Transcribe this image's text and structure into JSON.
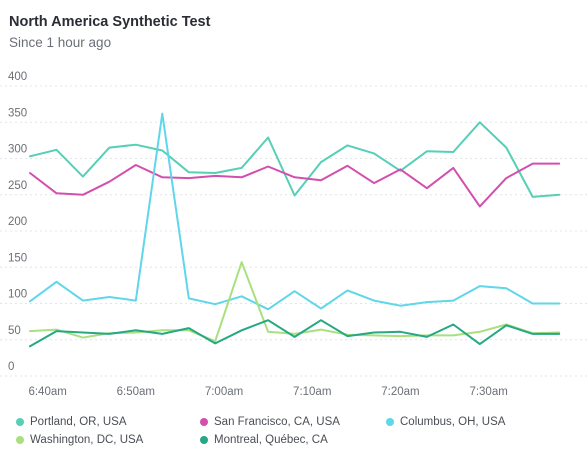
{
  "header": {
    "title": "North America Synthetic Test",
    "subtitle": "Since 1 hour ago"
  },
  "chart_data": {
    "type": "line",
    "title": "North America Synthetic Test",
    "subtitle": "Since 1 hour ago",
    "ylim": [
      0,
      400
    ],
    "yticks": [
      0,
      50,
      100,
      150,
      200,
      250,
      300,
      350,
      400
    ],
    "ytick_labels": [
      "0",
      "50",
      "100",
      "150",
      "200",
      "250",
      "300",
      "350",
      "400"
    ],
    "xticks": [
      "6:40am",
      "6:50am",
      "7:00am",
      "7:10am",
      "7:20am",
      "7:30am"
    ],
    "x_range": [
      "6:38am",
      "7:39am"
    ],
    "x": [
      "6:38am",
      "6:41am",
      "6:44am",
      "6:47am",
      "6:50am",
      "6:53am",
      "6:56am",
      "6:59am",
      "7:02am",
      "7:05am",
      "7:08am",
      "7:11am",
      "7:14am",
      "7:17am",
      "7:20am",
      "7:23am",
      "7:26am",
      "7:29am",
      "7:32am",
      "7:35am",
      "7:38am"
    ],
    "grid": true,
    "legend_position": "bottom",
    "series": [
      {
        "name": "Portland, OR, USA",
        "color": "#55cfb6",
        "values": [
          303,
          312,
          275,
          315,
          319,
          311,
          281,
          280,
          287,
          329,
          249,
          295,
          318,
          307,
          283,
          310,
          309,
          350,
          315,
          247,
          250
        ]
      },
      {
        "name": "San Francisco, CA, USA",
        "color": "#d24fad",
        "values": [
          280,
          252,
          250,
          268,
          291,
          274,
          273,
          276,
          274,
          289,
          274,
          270,
          290,
          266,
          285,
          259,
          287,
          234,
          273,
          293,
          293
        ]
      },
      {
        "name": "Columbus, OH, USA",
        "color": "#5fd6e9",
        "values": [
          103,
          130,
          104,
          109,
          104,
          362,
          107,
          99,
          110,
          92,
          117,
          93,
          118,
          104,
          97,
          102,
          104,
          124,
          121,
          100,
          100
        ]
      },
      {
        "name": "Washington, DC, USA",
        "color": "#a8e07f",
        "values": [
          62,
          64,
          53,
          59,
          60,
          63,
          63,
          48,
          157,
          61,
          58,
          64,
          57,
          56,
          55,
          56,
          56,
          61,
          71,
          59,
          60
        ]
      },
      {
        "name": "Montreal, Québec, CA",
        "color": "#25a883",
        "values": [
          41,
          62,
          60,
          58,
          63,
          58,
          66,
          45,
          63,
          77,
          54,
          77,
          55,
          60,
          61,
          54,
          71,
          44,
          70,
          58,
          58
        ]
      }
    ]
  }
}
